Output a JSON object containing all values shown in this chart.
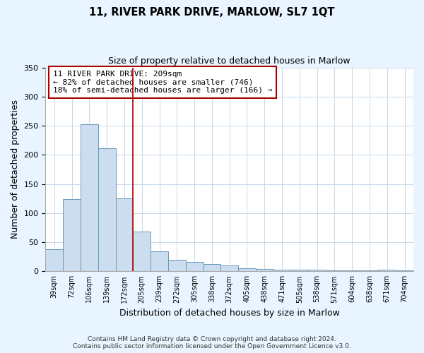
{
  "title": "11, RIVER PARK DRIVE, MARLOW, SL7 1QT",
  "subtitle": "Size of property relative to detached houses in Marlow",
  "xlabel": "Distribution of detached houses by size in Marlow",
  "ylabel": "Number of detached properties",
  "categories": [
    "39sqm",
    "72sqm",
    "106sqm",
    "139sqm",
    "172sqm",
    "205sqm",
    "239sqm",
    "272sqm",
    "305sqm",
    "338sqm",
    "372sqm",
    "405sqm",
    "438sqm",
    "471sqm",
    "505sqm",
    "538sqm",
    "571sqm",
    "604sqm",
    "638sqm",
    "671sqm",
    "704sqm"
  ],
  "values": [
    38,
    124,
    252,
    211,
    125,
    68,
    34,
    20,
    16,
    12,
    10,
    5,
    4,
    3,
    3,
    3,
    2,
    2,
    1,
    3,
    1
  ],
  "bar_color": "#ccddf0",
  "bar_edge_color": "#6699bb",
  "vline_color": "#aa0000",
  "annotation_title": "11 RIVER PARK DRIVE: 209sqm",
  "annotation_line1": "← 82% of detached houses are smaller (746)",
  "annotation_line2": "18% of semi-detached houses are larger (166) →",
  "ylim": [
    0,
    350
  ],
  "yticks": [
    0,
    50,
    100,
    150,
    200,
    250,
    300,
    350
  ],
  "footer_line1": "Contains HM Land Registry data © Crown copyright and database right 2024.",
  "footer_line2": "Contains public sector information licensed under the Open Government Licence v3.0.",
  "background_color": "#e8f4ff",
  "plot_background": "#ffffff",
  "grid_color": "#c5d8ea"
}
